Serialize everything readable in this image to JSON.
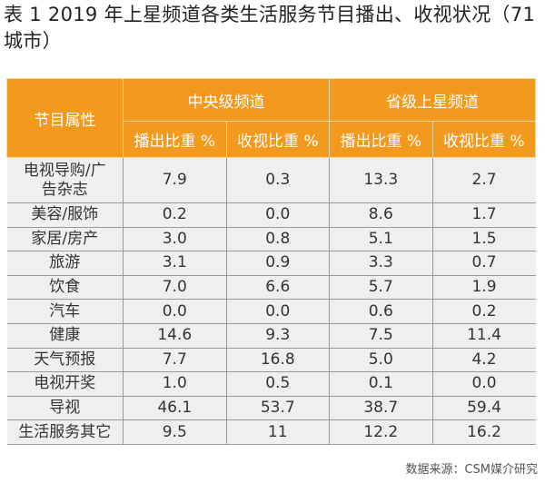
{
  "title": "表 1 2019 年上星频道各类生活服务节目播出、收视状况（71 城市）",
  "table": {
    "row_header": "节目属性",
    "groups": [
      "中央级频道",
      "省级上星频道"
    ],
    "subheaders": [
      "播出比重 %",
      "收视比重 %",
      "播出比重 %",
      "收视比重 %"
    ],
    "rows": [
      {
        "label": "电视导购/广告杂志",
        "values": [
          "7.9",
          "0.3",
          "13.3",
          "2.7"
        ]
      },
      {
        "label": "美容/服饰",
        "values": [
          "0.2",
          "0.0",
          "8.6",
          "1.7"
        ]
      },
      {
        "label": "家居/房产",
        "values": [
          "3.0",
          "0.8",
          "5.1",
          "1.5"
        ]
      },
      {
        "label": "旅游",
        "values": [
          "3.1",
          "0.9",
          "3.3",
          "0.7"
        ]
      },
      {
        "label": "饮食",
        "values": [
          "7.0",
          "6.6",
          "5.7",
          "1.9"
        ]
      },
      {
        "label": "汽车",
        "values": [
          "0.0",
          "0.0",
          "0.6",
          "0.2"
        ]
      },
      {
        "label": "健康",
        "values": [
          "14.6",
          "9.3",
          "7.5",
          "11.4"
        ]
      },
      {
        "label": "天气预报",
        "values": [
          "7.7",
          "16.8",
          "5.0",
          "4.2"
        ]
      },
      {
        "label": "电视开奖",
        "values": [
          "1.0",
          "0.5",
          "0.1",
          "0.0"
        ]
      },
      {
        "label": "导视",
        "values": [
          "46.1",
          "53.7",
          "38.7",
          "59.4"
        ]
      },
      {
        "label": "生活服务其它",
        "values": [
          "9.5",
          "11",
          "12.2",
          "16.2"
        ]
      }
    ]
  },
  "source": "数据来源：CSM媒介研究",
  "colors": {
    "header_bg": "#f39a1e",
    "body_bg": "#efefef"
  }
}
